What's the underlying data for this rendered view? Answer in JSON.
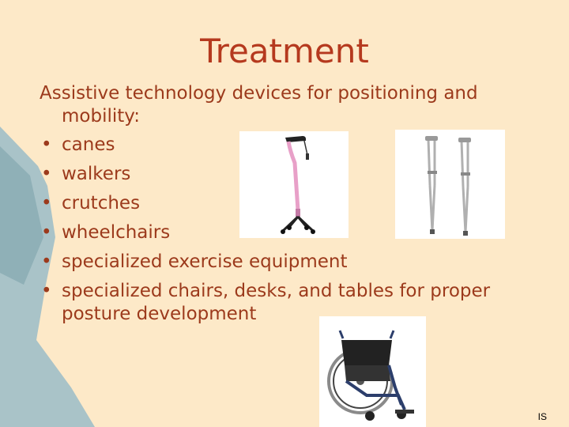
{
  "slide": {
    "title": "Treatment",
    "intro": "Assistive technology devices for positioning and mobility:",
    "bullet_glyph": "•",
    "bullets": [
      "canes",
      "walkers",
      "crutches",
      "wheelchairs",
      "specialized exercise equipment",
      "specialized chairs, desks, and tables for proper posture development"
    ],
    "footer": "IS"
  },
  "colors": {
    "background": "#fde9c8",
    "title": "#b5391e",
    "text": "#9c3a1c",
    "side_shape": "#a9c3c8"
  },
  "images": [
    "quad-cane-photo",
    "crutches-photo",
    "wheelchair-photo"
  ]
}
